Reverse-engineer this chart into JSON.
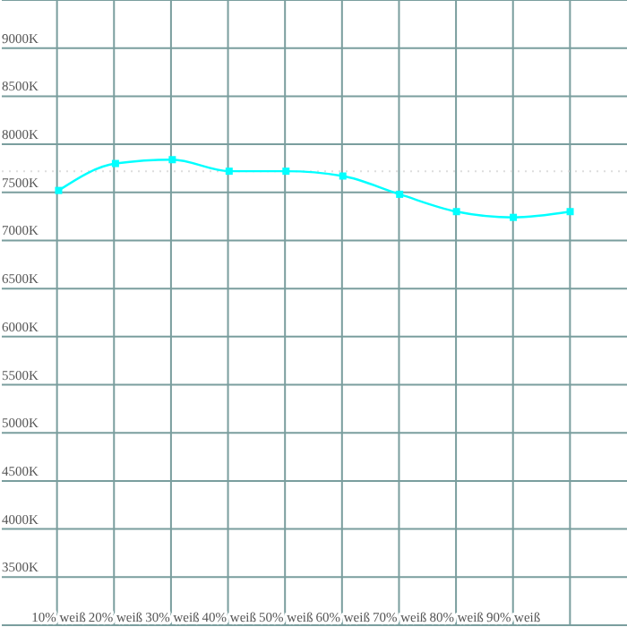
{
  "chart_data": {
    "type": "line",
    "categories": [
      "10% weiß",
      "20% weiß",
      "30% weiß",
      "40% weiß",
      "50% weiß",
      "60% weiß",
      "70% weiß",
      "80% weiß",
      "90% weiß",
      null
    ],
    "series": [
      {
        "color": "#00ffff",
        "values": [
          7520,
          7800,
          7840,
          7720,
          7720,
          7670,
          7480,
          7300,
          7240,
          7300
        ]
      }
    ],
    "ylim": [
      3000,
      9500
    ],
    "yticks": [
      {
        "value": 3500,
        "label": "3500K"
      },
      {
        "value": 4000,
        "label": "4000K"
      },
      {
        "value": 4500,
        "label": "4500K"
      },
      {
        "value": 5000,
        "label": "5000K"
      },
      {
        "value": 5500,
        "label": "5500K"
      },
      {
        "value": 6000,
        "label": "6000K"
      },
      {
        "value": 6500,
        "label": "6500K"
      },
      {
        "value": 7000,
        "label": "7000K"
      },
      {
        "value": 7500,
        "label": "7500K"
      },
      {
        "value": 8000,
        "label": "8000K"
      },
      {
        "value": 8500,
        "label": "8500K"
      },
      {
        "value": 9000,
        "label": "9000K"
      }
    ],
    "ref_lines": [
      {
        "axis": "y",
        "value": 7720,
        "color": "#dddddd",
        "line_style": "dotted"
      }
    ],
    "grid": true,
    "marker": "square",
    "line_style": "solid"
  }
}
